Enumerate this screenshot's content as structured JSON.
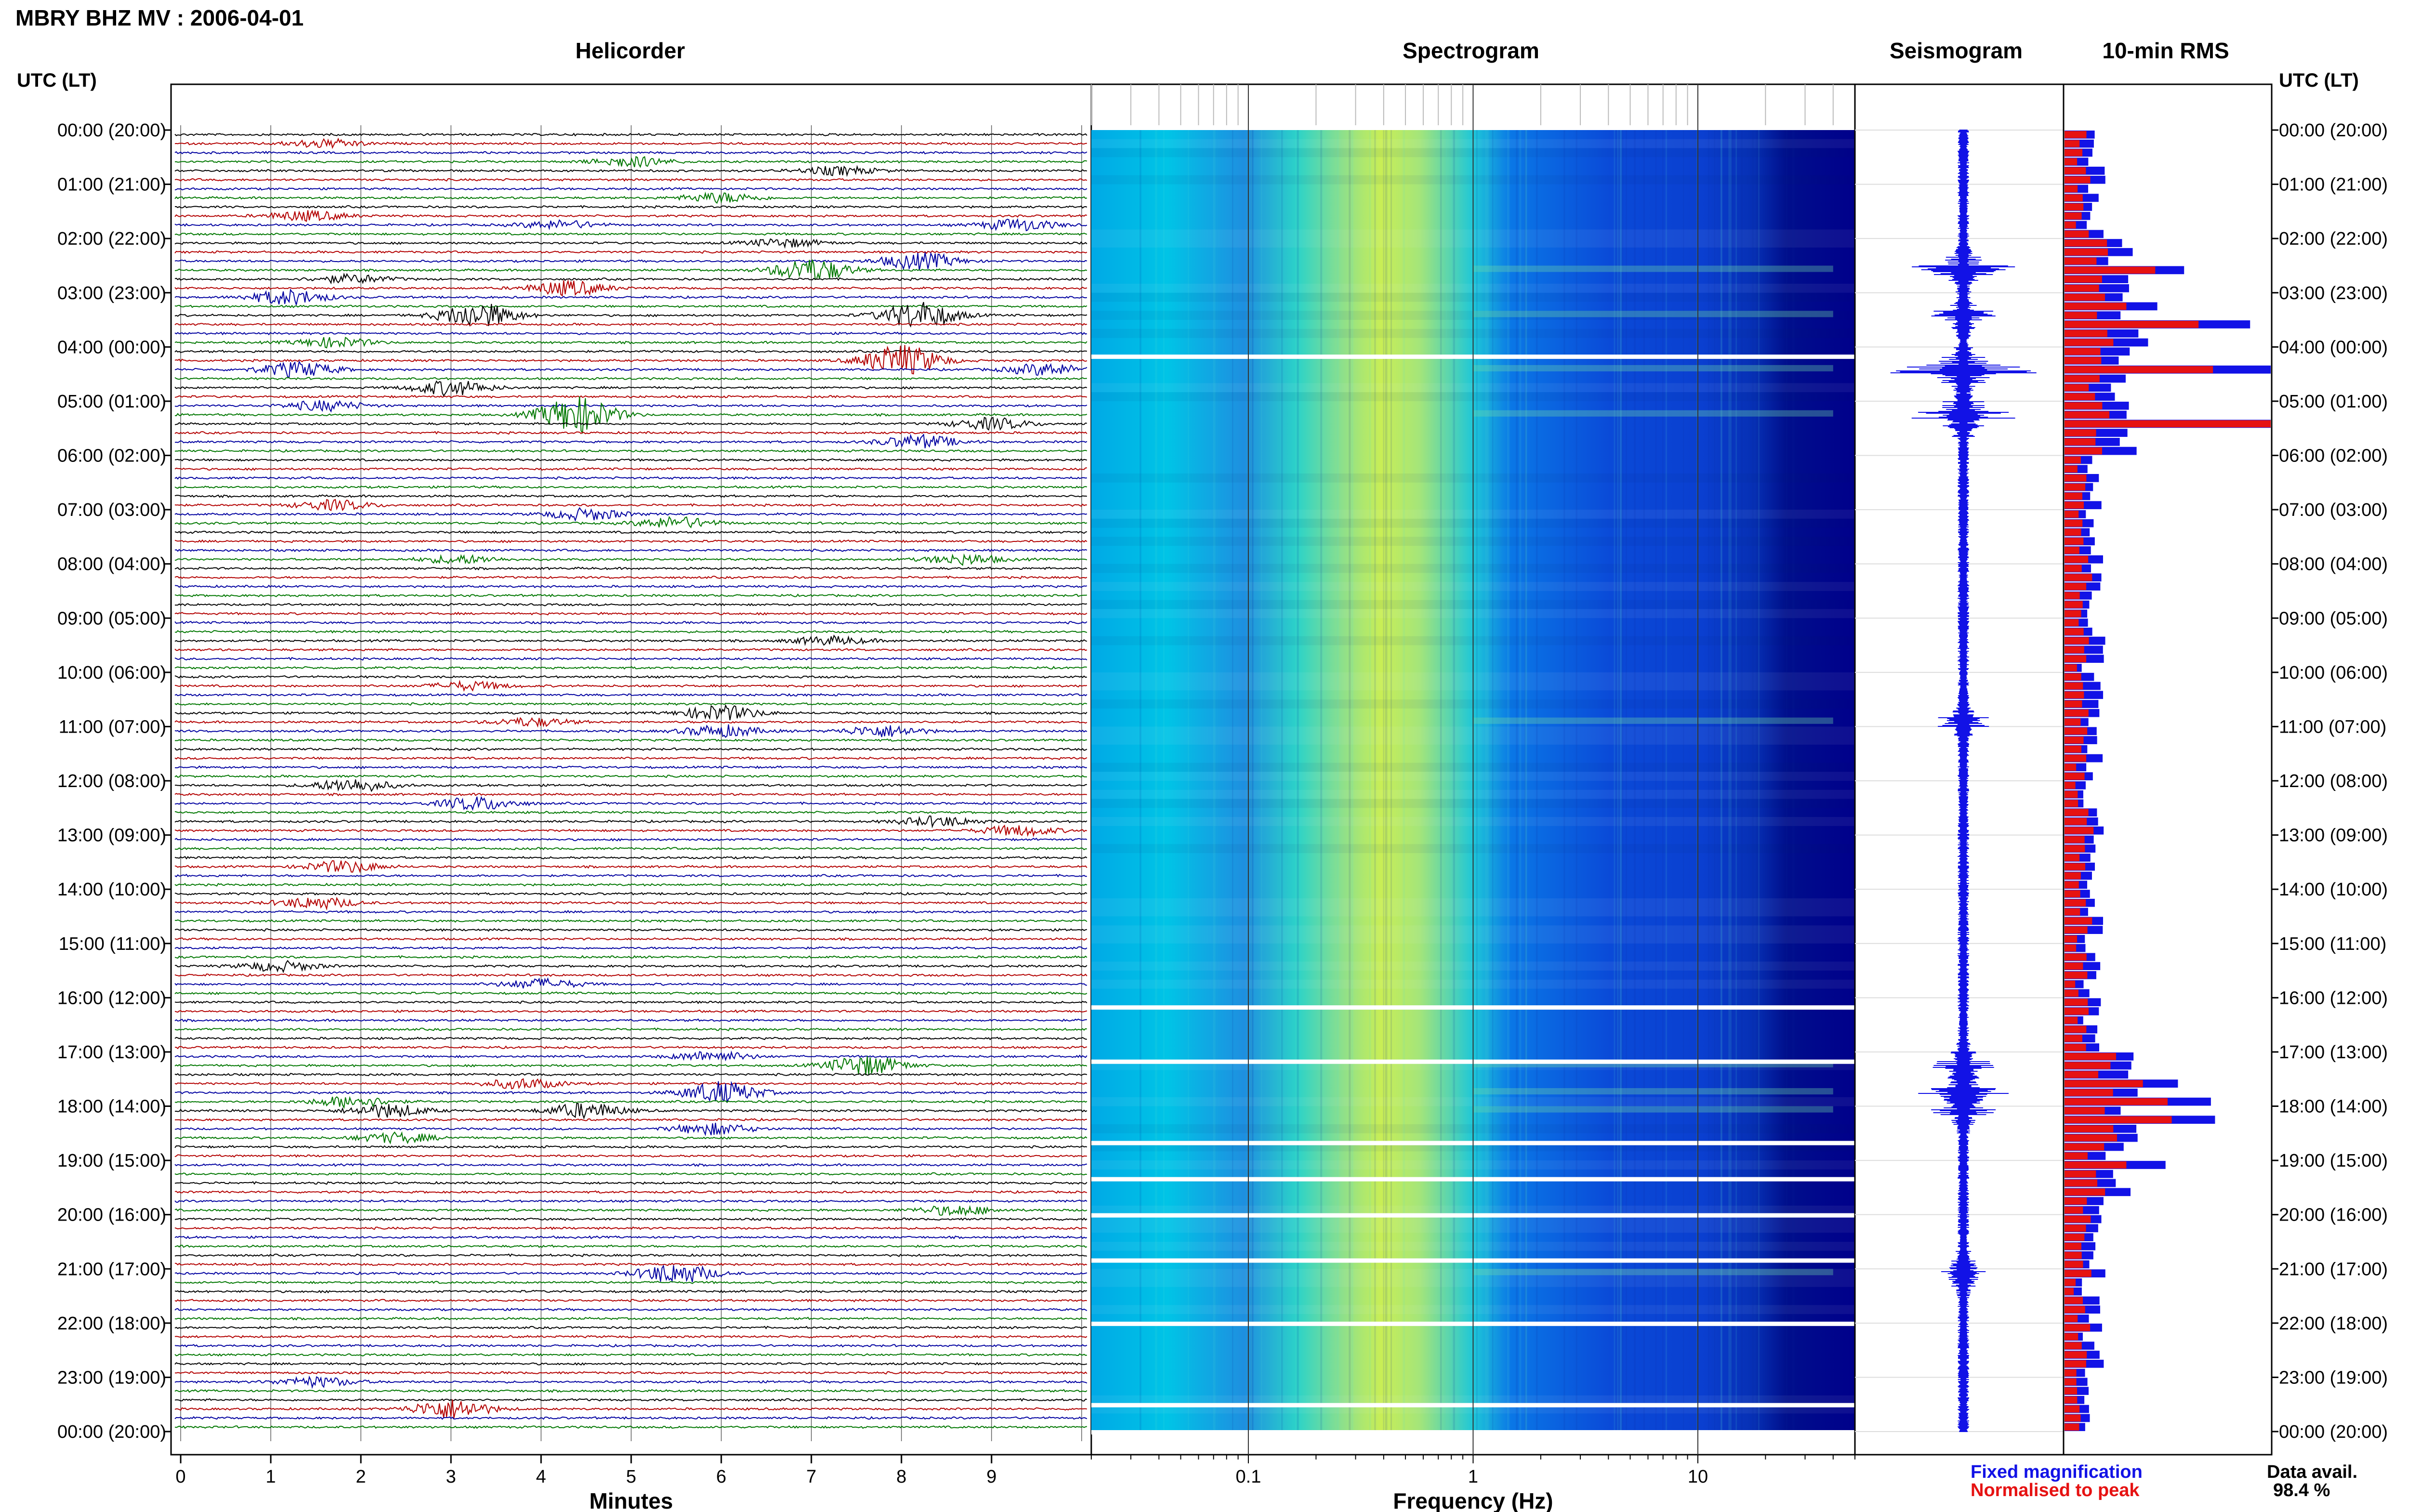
{
  "title": "MBRY BHZ MV : 2006-04-01",
  "panels": {
    "helicorder": "Helicorder",
    "spectrogram": "Spectrogram",
    "seismogram": "Seismogram",
    "rms": "10-min RMS"
  },
  "left_header": "UTC (LT)",
  "right_header": "UTC (LT)",
  "time_labels": [
    "00:00 (20:00)",
    "01:00 (21:00)",
    "02:00 (22:00)",
    "03:00 (23:00)",
    "04:00 (00:00)",
    "05:00 (01:00)",
    "06:00 (02:00)",
    "07:00 (03:00)",
    "08:00 (04:00)",
    "09:00 (05:00)",
    "10:00 (06:00)",
    "11:00 (07:00)",
    "12:00 (08:00)",
    "13:00 (09:00)",
    "14:00 (10:00)",
    "15:00 (11:00)",
    "16:00 (12:00)",
    "17:00 (13:00)",
    "18:00 (14:00)",
    "19:00 (15:00)",
    "20:00 (16:00)",
    "21:00 (17:00)",
    "22:00 (18:00)",
    "23:00 (19:00)",
    "00:00 (20:00)"
  ],
  "legend": {
    "fixed": "Fixed magnification",
    "normalised": "Normalised to peak",
    "avail_label": "Data avail.",
    "avail_value": "98.4 %"
  },
  "colors": {
    "trace_cycle": [
      "#000000",
      "#b30000",
      "#0000a0",
      "#007700"
    ],
    "rms_fixed": "#1212e6",
    "rms_normalised": "#e61212",
    "spectrogram_colormap": [
      "#00008b",
      "#0033dd",
      "#0088ee",
      "#00cccc",
      "#44dd99",
      "#ccee44"
    ]
  },
  "chart_data": [
    {
      "type": "line",
      "name": "helicorder",
      "xlabel": "Minutes",
      "xticks": [
        "0",
        "1",
        "2",
        "3",
        "4",
        "5",
        "6",
        "7",
        "8",
        "9"
      ],
      "xlim": [
        0,
        10
      ],
      "rows": 144,
      "row_minutes": 10,
      "events": [
        {
          "row": 1,
          "min": 1.6,
          "amp": 0.5
        },
        {
          "row": 3,
          "min": 5.0,
          "amp": 0.6
        },
        {
          "row": 4,
          "min": 7.3,
          "amp": 0.5
        },
        {
          "row": 7,
          "min": 6.0,
          "amp": 0.6
        },
        {
          "row": 9,
          "min": 1.4,
          "amp": 0.6
        },
        {
          "row": 10,
          "min": 4.2,
          "amp": 0.5
        },
        {
          "row": 10,
          "min": 9.3,
          "amp": 0.7
        },
        {
          "row": 12,
          "min": 6.7,
          "amp": 0.5
        },
        {
          "row": 14,
          "min": 8.2,
          "amp": 1.0
        },
        {
          "row": 15,
          "min": 7.0,
          "amp": 1.4
        },
        {
          "row": 16,
          "min": 1.9,
          "amp": 0.5
        },
        {
          "row": 17,
          "min": 4.3,
          "amp": 0.9
        },
        {
          "row": 18,
          "min": 1.2,
          "amp": 0.9
        },
        {
          "row": 20,
          "min": 3.3,
          "amp": 1.5
        },
        {
          "row": 20,
          "min": 8.2,
          "amp": 1.6
        },
        {
          "row": 23,
          "min": 1.7,
          "amp": 0.6
        },
        {
          "row": 25,
          "min": 8.0,
          "amp": 1.9
        },
        {
          "row": 26,
          "min": 1.3,
          "amp": 0.9
        },
        {
          "row": 26,
          "min": 9.6,
          "amp": 0.7
        },
        {
          "row": 28,
          "min": 3.0,
          "amp": 0.9
        },
        {
          "row": 30,
          "min": 1.6,
          "amp": 0.6
        },
        {
          "row": 31,
          "min": 4.4,
          "amp": 2.2
        },
        {
          "row": 32,
          "min": 9.0,
          "amp": 0.7
        },
        {
          "row": 34,
          "min": 8.2,
          "amp": 0.8
        },
        {
          "row": 41,
          "min": 1.7,
          "amp": 0.6
        },
        {
          "row": 42,
          "min": 4.5,
          "amp": 0.7
        },
        {
          "row": 43,
          "min": 5.5,
          "amp": 0.7
        },
        {
          "row": 47,
          "min": 3.1,
          "amp": 0.5
        },
        {
          "row": 47,
          "min": 8.7,
          "amp": 0.6
        },
        {
          "row": 56,
          "min": 7.2,
          "amp": 0.5
        },
        {
          "row": 61,
          "min": 3.2,
          "amp": 0.5
        },
        {
          "row": 64,
          "min": 6.0,
          "amp": 0.9
        },
        {
          "row": 65,
          "min": 3.9,
          "amp": 0.5
        },
        {
          "row": 66,
          "min": 6.0,
          "amp": 0.7
        },
        {
          "row": 66,
          "min": 7.8,
          "amp": 0.7
        },
        {
          "row": 72,
          "min": 1.9,
          "amp": 0.8
        },
        {
          "row": 74,
          "min": 3.3,
          "amp": 0.8
        },
        {
          "row": 76,
          "min": 8.4,
          "amp": 0.6
        },
        {
          "row": 77,
          "min": 9.3,
          "amp": 0.6
        },
        {
          "row": 81,
          "min": 1.8,
          "amp": 0.7
        },
        {
          "row": 85,
          "min": 1.5,
          "amp": 0.7
        },
        {
          "row": 92,
          "min": 1.1,
          "amp": 0.6
        },
        {
          "row": 94,
          "min": 4.0,
          "amp": 0.6
        },
        {
          "row": 102,
          "min": 5.9,
          "amp": 0.6
        },
        {
          "row": 103,
          "min": 7.6,
          "amp": 1.2
        },
        {
          "row": 105,
          "min": 3.8,
          "amp": 0.6
        },
        {
          "row": 106,
          "min": 6.0,
          "amp": 1.3
        },
        {
          "row": 107,
          "min": 1.9,
          "amp": 0.7
        },
        {
          "row": 108,
          "min": 2.3,
          "amp": 0.8
        },
        {
          "row": 108,
          "min": 4.5,
          "amp": 0.9
        },
        {
          "row": 110,
          "min": 5.9,
          "amp": 0.7
        },
        {
          "row": 111,
          "min": 2.4,
          "amp": 0.6
        },
        {
          "row": 119,
          "min": 8.6,
          "amp": 0.6
        },
        {
          "row": 126,
          "min": 5.5,
          "amp": 1.2
        },
        {
          "row": 138,
          "min": 1.5,
          "amp": 0.6
        },
        {
          "row": 141,
          "min": 3.0,
          "amp": 1.2
        }
      ]
    },
    {
      "type": "heatmap",
      "name": "spectrogram",
      "xlabel": "Frequency (Hz)",
      "xscale": "log",
      "xlim": [
        0.02,
        50
      ],
      "xticks": [
        0.1,
        1,
        10
      ],
      "xticklabels": [
        "0.1",
        "1",
        "10"
      ],
      "dominant_band_hz": [
        0.15,
        0.6
      ],
      "gap_rows": [
        25,
        97,
        103,
        112,
        116,
        120,
        125,
        132,
        141,
        144
      ]
    },
    {
      "type": "line",
      "name": "seismogram",
      "bursts": [
        {
          "row": 15,
          "amp": 0.9
        },
        {
          "row": 20,
          "amp": 0.5
        },
        {
          "row": 26,
          "amp": 1.4
        },
        {
          "row": 31,
          "amp": 1.2
        },
        {
          "row": 65,
          "amp": 0.4
        },
        {
          "row": 103,
          "amp": 0.6
        },
        {
          "row": 106,
          "amp": 0.8
        },
        {
          "row": 108,
          "amp": 0.5
        },
        {
          "row": 126,
          "amp": 0.6
        }
      ]
    },
    {
      "type": "bar",
      "name": "10-min RMS",
      "series_names": [
        "Fixed magnification",
        "Normalised to peak"
      ],
      "fixed_max": 1.0,
      "big_bars": [
        {
          "row": 15,
          "fixed": 0.58,
          "normalised": 0.44
        },
        {
          "row": 19,
          "fixed": 0.45,
          "normalised": 0.3
        },
        {
          "row": 21,
          "fixed": 0.9,
          "normalised": 0.65
        },
        {
          "row": 26,
          "fixed": 1.0,
          "normalised": 0.72
        },
        {
          "row": 32,
          "fixed": 1.0,
          "normalised": 1.0
        },
        {
          "row": 105,
          "fixed": 0.55,
          "normalised": 0.38
        },
        {
          "row": 107,
          "fixed": 0.71,
          "normalised": 0.5
        },
        {
          "row": 109,
          "fixed": 0.73,
          "normalised": 0.52
        },
        {
          "row": 114,
          "fixed": 0.49,
          "normalised": 0.3
        }
      ]
    }
  ]
}
